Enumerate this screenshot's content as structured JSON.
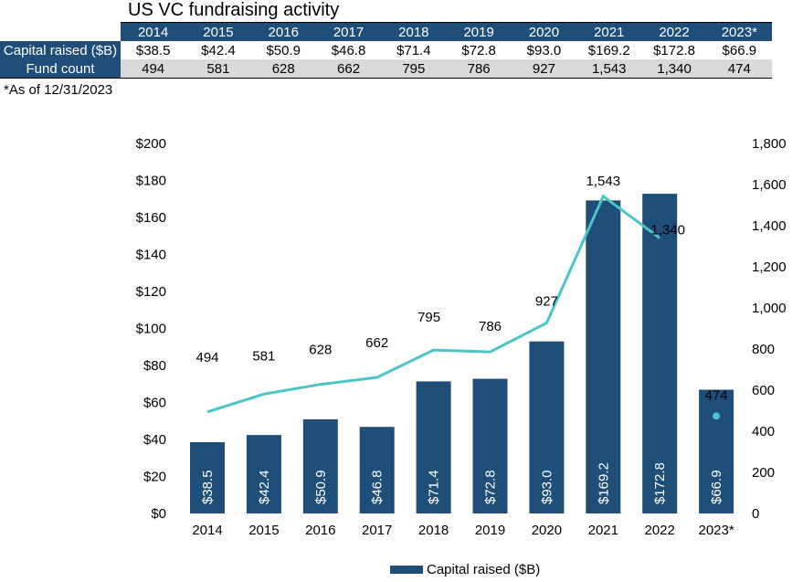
{
  "chart_data": {
    "type": "bar",
    "title": "US VC fundraising activity",
    "note": "*As of 12/31/2023",
    "categories": [
      "2014",
      "2015",
      "2016",
      "2017",
      "2018",
      "2019",
      "2020",
      "2021",
      "2022",
      "2023*"
    ],
    "series": [
      {
        "name": "Capital raised ($B)",
        "type": "bar",
        "axis": "left",
        "values": [
          38.5,
          42.4,
          50.9,
          46.8,
          71.4,
          72.8,
          93.0,
          169.2,
          172.8,
          66.9
        ],
        "labels": [
          "$38.5",
          "$42.4",
          "$50.9",
          "$46.8",
          "$71.4",
          "$72.8",
          "$93.0",
          "$169.2",
          "$172.8",
          "$66.9"
        ],
        "color": "#1F4E79"
      },
      {
        "name": "Fund count",
        "type": "line",
        "axis": "right",
        "values": [
          494,
          581,
          628,
          662,
          795,
          786,
          927,
          1543,
          1340,
          474
        ],
        "labels": [
          "494",
          "581",
          "628",
          "662",
          "795",
          "786",
          "927",
          "1,543",
          "1,340",
          "474"
        ],
        "color": "#4BC4C9"
      }
    ],
    "y_left": {
      "range": [
        0,
        200
      ],
      "ticks": [
        "$0",
        "$20",
        "$40",
        "$60",
        "$80",
        "$100",
        "$120",
        "$140",
        "$160",
        "$180",
        "$200"
      ]
    },
    "y_right": {
      "range": [
        0,
        1800
      ],
      "ticks": [
        "0",
        "200",
        "400",
        "600",
        "800",
        "1,000",
        "1,200",
        "1,400",
        "1,600",
        "1,800"
      ]
    },
    "legend": {
      "position": "bottom",
      "entries": [
        "Capital raised ($B)"
      ]
    },
    "grid": false,
    "table": {
      "row_labels": [
        "Capital raised ($B)",
        "Fund count"
      ]
    }
  }
}
